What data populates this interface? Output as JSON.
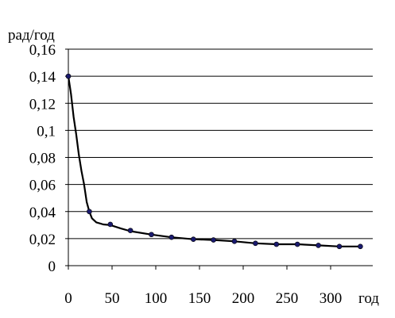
{
  "chart_data": {
    "type": "line",
    "ylabel": "рад/год",
    "xlabel": "год",
    "xlim": [
      0,
      337
    ],
    "ylim": [
      0,
      0.16
    ],
    "y_ticks": [
      {
        "value": 0,
        "label": "0"
      },
      {
        "value": 0.02,
        "label": "0,02"
      },
      {
        "value": 0.04,
        "label": "0,04"
      },
      {
        "value": 0.06,
        "label": "0,06"
      },
      {
        "value": 0.08,
        "label": "0,08"
      },
      {
        "value": 0.1,
        "label": "0,1"
      },
      {
        "value": 0.12,
        "label": "0,12"
      },
      {
        "value": 0.14,
        "label": "0,14"
      },
      {
        "value": 0.16,
        "label": "0,16"
      }
    ],
    "x_ticks": [
      {
        "value": 0,
        "label": "0"
      },
      {
        "value": 50,
        "label": "50"
      },
      {
        "value": 100,
        "label": "100"
      },
      {
        "value": 150,
        "label": "150"
      },
      {
        "value": 200,
        "label": "200"
      },
      {
        "value": 250,
        "label": "250"
      },
      {
        "value": 300,
        "label": "300"
      }
    ],
    "grid": "horizontal",
    "curve": {
      "x": [
        0,
        3,
        6,
        9,
        12,
        15,
        18,
        21,
        24,
        27,
        32,
        40,
        48,
        60,
        71,
        95,
        118,
        143,
        166,
        190,
        214,
        238,
        262,
        286,
        310,
        334
      ],
      "y": [
        0.14,
        0.127,
        0.11,
        0.097,
        0.082,
        0.07,
        0.06,
        0.047,
        0.04,
        0.035,
        0.032,
        0.0305,
        0.03,
        0.0275,
        0.0255,
        0.023,
        0.021,
        0.0195,
        0.019,
        0.018,
        0.0165,
        0.0158,
        0.0158,
        0.015,
        0.0142,
        0.0142
      ]
    },
    "markers": {
      "x": [
        0,
        24,
        48,
        71,
        95,
        118,
        143,
        166,
        190,
        214,
        238,
        262,
        286,
        310,
        334
      ],
      "y": [
        0.14,
        0.04,
        0.0305,
        0.026,
        0.023,
        0.021,
        0.0195,
        0.019,
        0.018,
        0.0165,
        0.0158,
        0.0158,
        0.015,
        0.0142,
        0.0142
      ]
    },
    "colors": {
      "line": "#000000",
      "marker": "#1a1a6e",
      "grid": "#000000"
    }
  }
}
